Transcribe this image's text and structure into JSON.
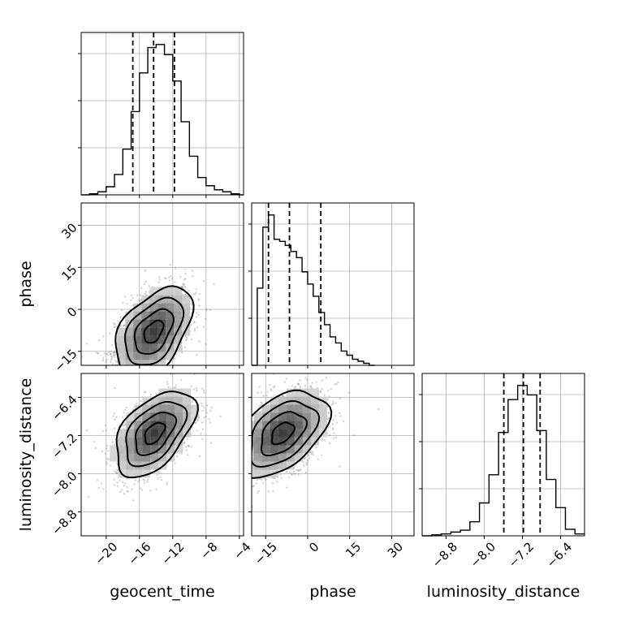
{
  "chart_data": {
    "type": "corner",
    "parameters": [
      "geocent_time",
      "phase",
      "luminosity_distance"
    ],
    "axes": {
      "geocent_time": {
        "label": "geocent_time",
        "range": [
          -23,
          -3.5
        ],
        "ticks": [
          -20,
          -16,
          -12,
          -8,
          -4
        ],
        "tick_labels": [
          "−20",
          "−16",
          "−12",
          "−8",
          "−4"
        ],
        "quantiles": [
          -16.8,
          -14.3,
          -11.8
        ]
      },
      "phase": {
        "label": "phase",
        "range": [
          -20,
          38
        ],
        "ticks": [
          -15,
          0,
          15,
          30
        ],
        "tick_labels": [
          "−15",
          "0",
          "15",
          "30"
        ],
        "quantiles": [
          -14.0,
          -6.5,
          4.7
        ]
      },
      "luminosity_distance": {
        "label": "luminosity_distance",
        "range": [
          -9.3,
          -5.9
        ],
        "ticks": [
          -8.8,
          -8.0,
          -7.2,
          -6.4
        ],
        "tick_labels": [
          "−8.8",
          "−8.0",
          "−7.2",
          "−6.4"
        ],
        "quantiles": [
          -7.59,
          -7.18,
          -6.83
        ]
      }
    },
    "histograms": {
      "geocent_time": {
        "bin_edges": [
          -23,
          -22,
          -21,
          -20,
          -19,
          -18,
          -17,
          -16,
          -15,
          -14,
          -13,
          -12,
          -11,
          -10,
          -9,
          -8,
          -7,
          -6,
          -5,
          -4,
          -3.5
        ],
        "counts": [
          0,
          1,
          3,
          8,
          20,
          45,
          82,
          120,
          145,
          148,
          138,
          112,
          72,
          38,
          17,
          9,
          5,
          3,
          1,
          0
        ]
      },
      "phase": {
        "bin_edges": [
          -20,
          -18,
          -16,
          -14,
          -12,
          -10,
          -8,
          -6,
          -4,
          -2,
          0,
          2,
          4,
          6,
          8,
          10,
          12,
          14,
          16,
          18,
          20,
          22,
          24
        ],
        "counts": [
          0,
          38,
          68,
          74,
          62,
          61,
          59,
          56,
          53,
          46,
          40,
          34,
          26,
          20,
          14,
          11,
          7,
          5,
          3,
          2,
          1,
          0
        ]
      },
      "luminosity_distance": {
        "bin_edges": [
          -9.3,
          -9.1,
          -8.9,
          -8.7,
          -8.5,
          -8.3,
          -8.1,
          -7.9,
          -7.7,
          -7.5,
          -7.3,
          -7.1,
          -6.9,
          -6.7,
          -6.5,
          -6.3,
          -6.1,
          -5.9
        ],
        "counts": [
          0,
          1,
          2,
          4,
          6,
          15,
          35,
          65,
          110,
          145,
          160,
          150,
          112,
          60,
          30,
          7,
          2
        ]
      }
    },
    "scatter_2d": [
      {
        "x": "geocent_time",
        "y": "phase",
        "center": [
          -14.3,
          -8.0
        ],
        "spread": [
          2.3,
          8.0
        ],
        "correlation": 0.45
      },
      {
        "x": "geocent_time",
        "y": "luminosity_distance",
        "center": [
          -14.2,
          -7.15
        ],
        "spread": [
          2.4,
          0.45
        ],
        "correlation": 0.5
      },
      {
        "x": "phase",
        "y": "luminosity_distance",
        "center": [
          -9.0,
          -7.15
        ],
        "spread": [
          8.0,
          0.45
        ],
        "correlation": 0.45
      }
    ],
    "grid": true,
    "colors": {
      "points": "#7f7f7f",
      "lines": "#000000"
    }
  }
}
